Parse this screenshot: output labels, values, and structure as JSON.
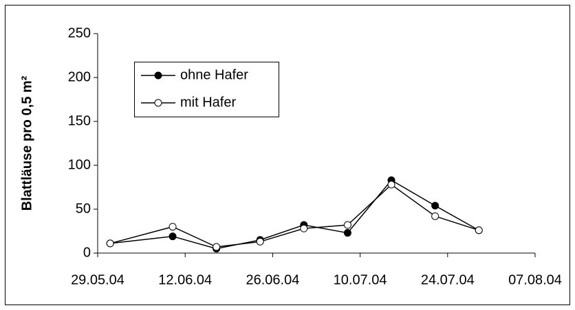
{
  "chart_data": {
    "type": "line",
    "y_label": "Blattläuse pro 0,5 m²",
    "x": [
      "31.05.04",
      "10.06.04",
      "17.06.04",
      "24.06.04",
      "01.07.04",
      "08.07.04",
      "15.07.04",
      "22.07.04",
      "29.07.04"
    ],
    "series": [
      {
        "name": "ohne Hafer",
        "color": "#000000",
        "marker_fill": "#000000",
        "values": [
          11,
          19,
          5,
          15,
          32,
          23,
          83,
          54,
          26
        ]
      },
      {
        "name": "mit Hafer",
        "color": "#000000",
        "marker_fill": "#ffffff",
        "values": [
          11,
          30,
          7,
          13,
          28,
          32,
          78,
          42,
          26
        ]
      }
    ],
    "xlim": [
      "29.05.04",
      "07.08.04"
    ],
    "xticks": [
      "29.05.04",
      "12.06.04",
      "26.06.04",
      "10.07.04",
      "24.07.04",
      "07.08.04"
    ],
    "ylim": [
      0,
      250
    ],
    "yticks": [
      0,
      50,
      100,
      150,
      200,
      250
    ],
    "grid": false,
    "legend": "upper left"
  }
}
